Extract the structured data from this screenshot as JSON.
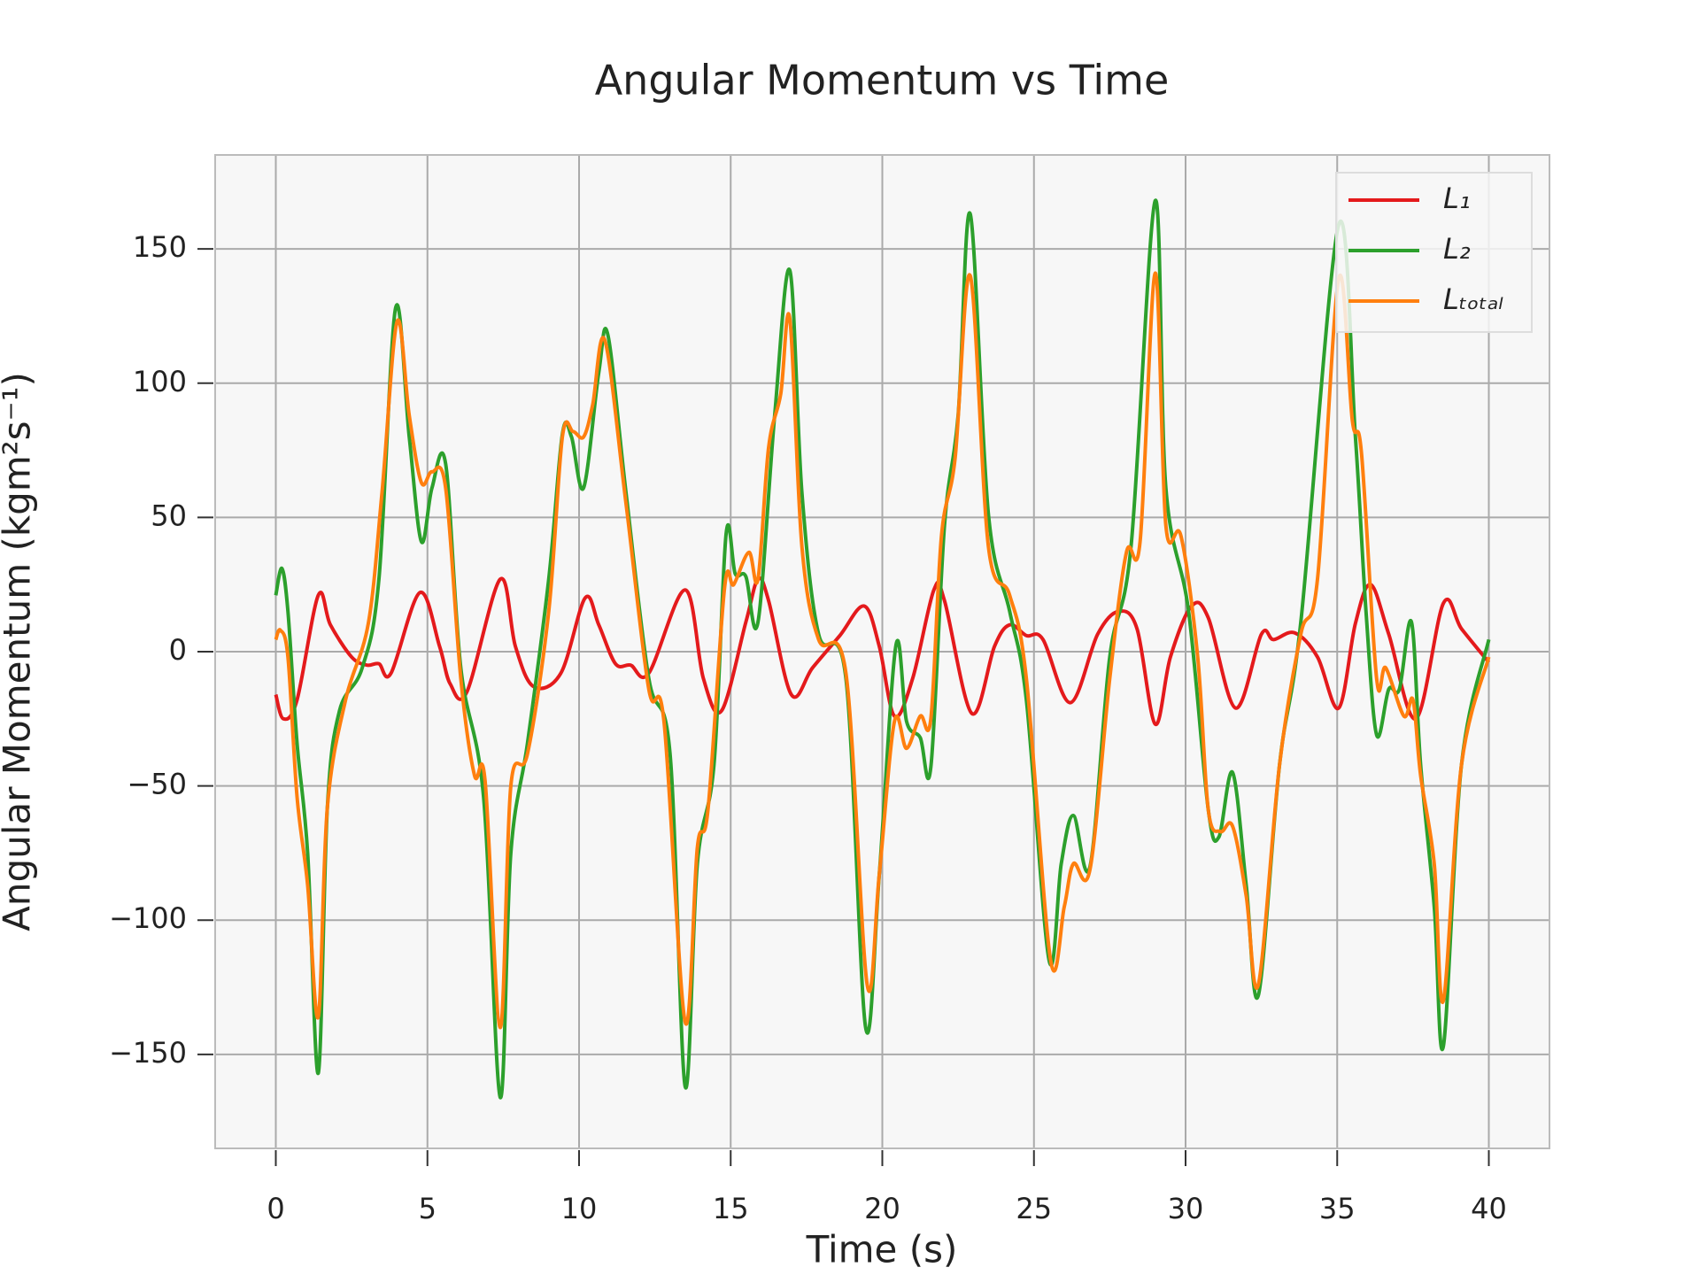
{
  "chart_data": {
    "type": "line",
    "title": "Angular Momentum vs Time",
    "xlabel": "Time (s)",
    "ylabel": "Angular Momentum (kgm²s⁻¹)",
    "xlim": [
      -2,
      42
    ],
    "ylim": [
      -185,
      185
    ],
    "xticks": [
      0,
      5,
      10,
      15,
      20,
      25,
      30,
      35,
      40
    ],
    "yticks": [
      {
        "value": -150,
        "label": "−150"
      },
      {
        "value": -100,
        "label": "−100"
      },
      {
        "value": -50,
        "label": "−50"
      },
      0,
      50,
      100,
      150
    ],
    "grid": true,
    "legend": "upper right",
    "series": [
      {
        "name": "L₁",
        "color": "#e41a1c",
        "x": [
          0,
          0.25,
          0.7,
          1.4,
          1.8,
          2.5,
          3.0,
          3.4,
          3.8,
          4.75,
          5.4,
          5.75,
          6.3,
          7.4,
          7.9,
          8.5,
          9.4,
          10.2,
          10.65,
          11.2,
          11.7,
          12.3,
          13.5,
          14.1,
          14.7,
          15.5,
          15.9,
          16.25,
          17.0,
          17.7,
          18.6,
          19.4,
          19.9,
          20.4,
          21.0,
          21.7,
          22.05,
          22.95,
          23.7,
          24.2,
          24.75,
          25.3,
          26.2,
          27.1,
          27.8,
          28.4,
          29.0,
          29.5,
          30.2,
          30.75,
          31.65,
          32.5,
          32.9,
          33.6,
          34.35,
          35.05,
          35.6,
          36.1,
          36.7,
          37.6,
          38.5,
          39.1,
          40
        ],
        "values": [
          -16,
          -25,
          -18,
          21,
          10,
          -2,
          -5,
          -4.5,
          -8,
          22,
          2,
          -12,
          -15,
          27,
          2,
          -13,
          -8,
          20,
          10,
          -4.5,
          -5,
          -8,
          23,
          -10,
          -22,
          11,
          27,
          19,
          -16,
          -6,
          6,
          17,
          2,
          -24,
          -10,
          23,
          19,
          -23,
          2,
          10,
          6,
          4.5,
          -19,
          6.5,
          15,
          8.5,
          -27,
          -2,
          17,
          12.6,
          -21,
          6.5,
          4.5,
          7,
          -2,
          -21,
          10.5,
          25,
          6.5,
          -25,
          18,
          8.5,
          -4
        ]
      },
      {
        "name": "L₂",
        "color": "#2ca02c",
        "x": [
          0,
          0.2,
          0.4,
          0.7,
          1.05,
          1.4,
          1.7,
          2.1,
          2.85,
          3.4,
          3.95,
          4.4,
          4.8,
          5.15,
          5.6,
          6.1,
          6.85,
          7.4,
          7.75,
          8.3,
          9.0,
          9.45,
          9.75,
          10.15,
          10.65,
          10.95,
          11.55,
          12.3,
          13.0,
          13.5,
          13.9,
          14.45,
          14.85,
          15.15,
          15.5,
          15.9,
          16.45,
          16.95,
          17.35,
          17.9,
          18.8,
          19.45,
          19.9,
          20.45,
          20.8,
          21.25,
          21.6,
          22.05,
          22.5,
          22.9,
          23.5,
          24.2,
          24.75,
          25.5,
          25.9,
          26.3,
          26.85,
          27.5,
          28.2,
          29.0,
          29.35,
          30.1,
          30.75,
          31.1,
          31.55,
          32.0,
          32.4,
          33.1,
          33.8,
          35.05,
          35.6,
          35.95,
          36.3,
          36.7,
          37.05,
          37.45,
          37.75,
          38.2,
          38.5,
          39.1,
          40
        ],
        "values": [
          21,
          31,
          15,
          -34,
          -75,
          -157,
          -58,
          -22,
          -6,
          27,
          128,
          80,
          41,
          61,
          70,
          -6,
          -54,
          -166,
          -75,
          -34,
          27,
          81,
          80,
          61,
          104,
          118,
          59,
          -10,
          -38,
          -162,
          -79,
          -42,
          44,
          29,
          28,
          11,
          88,
          142,
          59,
          6.5,
          -10,
          -140,
          -83,
          2.4,
          -26,
          -32,
          -43,
          47,
          88,
          163,
          51,
          15,
          -18,
          -115,
          -79,
          -61,
          -80,
          -2,
          39,
          168,
          61,
          15,
          -59,
          -69,
          -45,
          -87,
          -128,
          -42,
          11,
          159,
          80,
          15,
          -31,
          -14,
          -14,
          11,
          -42,
          -95,
          -147,
          -42,
          4.5
        ]
      },
      {
        "name": "Lₜₒₜₐₗ",
        "color": "#ff7f0e",
        "x": [
          0,
          0.15,
          0.4,
          0.7,
          1.05,
          1.4,
          1.7,
          2.3,
          3.05,
          3.5,
          4.0,
          4.4,
          4.8,
          5.15,
          5.6,
          6.1,
          6.55,
          6.9,
          7.4,
          7.75,
          8.3,
          9.0,
          9.45,
          9.8,
          10.15,
          10.45,
          10.85,
          11.55,
          12.3,
          12.8,
          13.5,
          13.9,
          14.25,
          14.8,
          15.1,
          15.6,
          15.9,
          16.25,
          16.65,
          16.95,
          17.35,
          17.9,
          18.8,
          19.5,
          19.9,
          20.4,
          20.8,
          21.25,
          21.6,
          21.95,
          22.4,
          22.9,
          23.5,
          24.2,
          24.75,
          25.55,
          26.0,
          26.3,
          26.85,
          27.5,
          28.05,
          28.5,
          29.0,
          29.35,
          29.85,
          30.4,
          30.75,
          31.15,
          31.55,
          32.0,
          32.4,
          33.1,
          33.8,
          34.35,
          35.05,
          35.5,
          35.8,
          36.3,
          36.6,
          37.2,
          37.5,
          37.75,
          38.2,
          38.5,
          39.1,
          40
        ],
        "values": [
          4.5,
          8,
          -2,
          -54,
          -87,
          -136,
          -58,
          -18,
          10.5,
          59,
          123,
          88,
          63,
          67,
          61,
          -10,
          -46,
          -48,
          -140,
          -50,
          -38,
          15,
          80,
          82,
          80,
          92,
          116,
          55,
          -14,
          -26,
          -138,
          -73,
          -59,
          24,
          25,
          37,
          27,
          76,
          96,
          124,
          39,
          4.5,
          -8,
          -124,
          -83,
          -26,
          -36,
          -24,
          -25,
          43,
          72,
          140,
          39,
          21,
          -10,
          -115,
          -95,
          -79,
          -81,
          -10,
          37,
          41,
          141,
          47,
          43,
          -2,
          -59,
          -67,
          -65,
          -91,
          -124,
          -42,
          6.5,
          27,
          139,
          86,
          74,
          -10,
          -6,
          -24,
          -18,
          -46,
          -79,
          -130,
          -42,
          -2
        ]
      }
    ]
  }
}
